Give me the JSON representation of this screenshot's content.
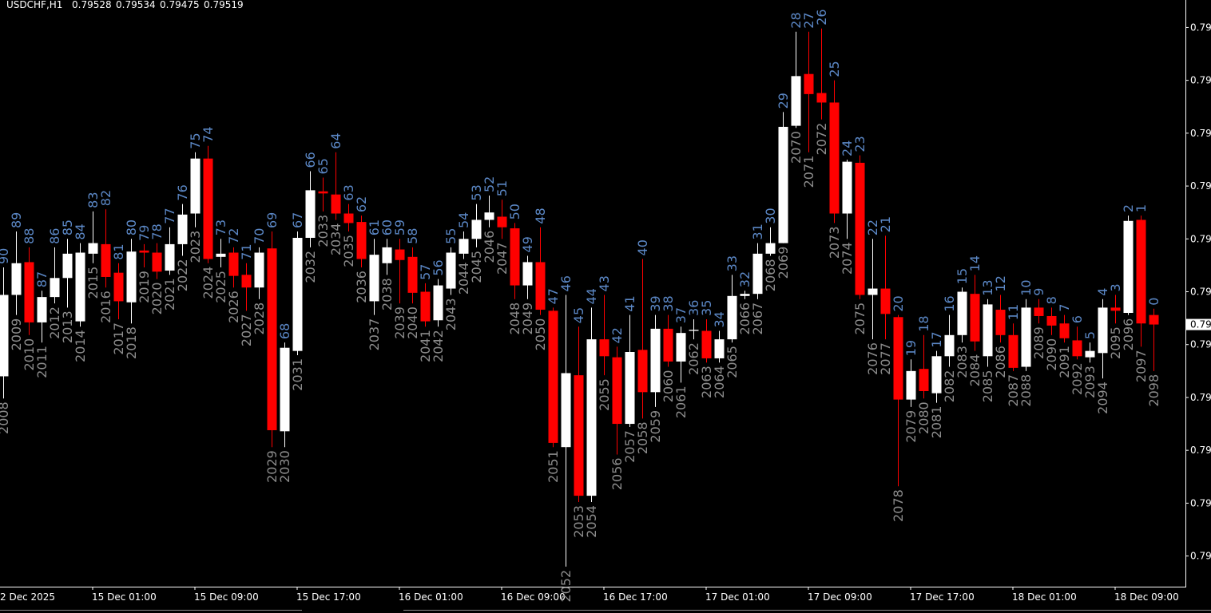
{
  "chart_data": {
    "type": "candlestick",
    "symbol": "USDCHF,H1",
    "up_color": "#ffffff",
    "down_color": "#ff0000",
    "background": "#000000",
    "count_color": "#5b87c5",
    "number_color": "#8c8c8c",
    "ylim": [
      0.79271,
      0.79826
    ],
    "yticks": [
      {
        "value": 0.798,
        "label": "0.79"
      },
      {
        "value": 0.7975,
        "label": "0.79"
      },
      {
        "value": 0.797,
        "label": "0.79"
      },
      {
        "value": 0.7965,
        "label": "0.79"
      },
      {
        "value": 0.796,
        "label": "0.79"
      },
      {
        "value": 0.7955,
        "label": "0.79"
      },
      {
        "value": 0.795,
        "label": "0.79"
      },
      {
        "value": 0.7945,
        "label": "0.79"
      },
      {
        "value": 0.794,
        "label": "0.79"
      },
      {
        "value": 0.7935,
        "label": "0.79"
      },
      {
        "value": 0.793,
        "label": "0.79"
      }
    ],
    "price_label": "0.79",
    "x_labels": [
      "2 Dec 2025",
      "15 Dec 01:00",
      "15 Dec 09:00",
      "15 Dec 17:00",
      "16 Dec 01:00",
      "16 Dec 09:00",
      "16 Dec 17:00",
      "17 Dec 01:00",
      "17 Dec 09:00",
      "17 Dec 17:00",
      "18 Dec 01:00",
      "18 Dec 09:00"
    ],
    "bar_numbers": [
      2008,
      2009,
      2010,
      2011,
      2012,
      2013,
      2014,
      2015,
      2016,
      2017,
      2018,
      2019,
      2020,
      2021,
      2022,
      2023,
      2024,
      2025,
      2026,
      2027,
      2028,
      2029,
      2030,
      2031,
      2032,
      2033,
      2034,
      2035,
      2036,
      2037,
      2038,
      2039,
      2040,
      2041,
      2042,
      2043,
      2044,
      2045,
      2046,
      2047,
      2048,
      2049,
      2050,
      2051,
      2052,
      2053,
      2054,
      2055,
      2056,
      2057,
      2058,
      2059,
      2060,
      2061,
      2062,
      2063,
      2064,
      2065,
      2066,
      2067,
      2068,
      2069,
      2070,
      2071,
      2072,
      2073,
      2074,
      2075,
      2076,
      2077,
      2078,
      2079,
      2080,
      2081,
      2082,
      2083,
      2084,
      2085,
      2086,
      2087,
      2088,
      2089,
      2090,
      2091,
      2092,
      2093,
      2094,
      2095,
      2096,
      2097,
      2098
    ],
    "countdown": [
      90,
      89,
      88,
      87,
      86,
      85,
      84,
      83,
      82,
      81,
      80,
      79,
      78,
      77,
      76,
      75,
      74,
      73,
      72,
      71,
      70,
      69,
      68,
      67,
      66,
      65,
      64,
      63,
      62,
      61,
      60,
      59,
      58,
      57,
      56,
      55,
      54,
      53,
      52,
      51,
      50,
      49,
      48,
      47,
      46,
      45,
      44,
      43,
      42,
      41,
      40,
      39,
      38,
      37,
      36,
      35,
      34,
      33,
      32,
      31,
      30,
      29,
      28,
      27,
      26,
      25,
      24,
      23,
      22,
      21,
      20,
      19,
      18,
      17,
      16,
      15,
      14,
      13,
      12,
      11,
      10,
      9,
      8,
      7,
      6,
      5,
      4,
      3,
      2,
      1,
      0
    ],
    "open": [
      0.7947,
      0.79547,
      0.79578,
      0.79521,
      0.79545,
      0.79563,
      0.79522,
      0.79586,
      0.79595,
      0.79568,
      0.7954,
      0.79589,
      0.79587,
      0.7957,
      0.79595,
      0.79624,
      0.79676,
      0.79583,
      0.79587,
      0.79566,
      0.79554,
      0.79591,
      0.79418,
      0.79494,
      0.79601,
      0.79645,
      0.79642,
      0.79624,
      0.79616,
      0.79541,
      0.79577,
      0.7959,
      0.79583,
      0.7955,
      0.79523,
      0.79553,
      0.79586,
      0.796,
      0.79618,
      0.79621,
      0.7961,
      0.79556,
      0.79578,
      0.79532,
      0.79403,
      0.79471,
      0.79357,
      0.79505,
      0.79488,
      0.79425,
      0.79495,
      0.79455,
      0.79515,
      0.79484,
      0.79513,
      0.79513,
      0.79487,
      0.79505,
      0.79546,
      0.79548,
      0.79586,
      0.79596,
      0.79707,
      0.79756,
      0.79738,
      0.79729,
      0.79624,
      0.79672,
      0.79547,
      0.79553,
      0.79526,
      0.79448,
      0.79477,
      0.79454,
      0.79489,
      0.79509,
      0.79548,
      0.79489,
      0.79533,
      0.79509,
      0.79479,
      0.79535,
      0.79527,
      0.7952,
      0.79504,
      0.79488,
      0.79492,
      0.79535,
      0.7953,
      0.79618,
      0.79528
    ],
    "high": [
      0.79573,
      0.79607,
      0.79592,
      0.79551,
      0.79592,
      0.796,
      0.79596,
      0.79626,
      0.79628,
      0.79577,
      0.796,
      0.79595,
      0.79596,
      0.79611,
      0.79633,
      0.79682,
      0.79688,
      0.796,
      0.79592,
      0.79577,
      0.79592,
      0.79607,
      0.79502,
      0.79607,
      0.79664,
      0.79658,
      0.79682,
      0.79633,
      0.79622,
      0.796,
      0.796,
      0.796,
      0.79592,
      0.79558,
      0.79562,
      0.79592,
      0.79607,
      0.79633,
      0.79641,
      0.79637,
      0.79615,
      0.79584,
      0.79611,
      0.79535,
      0.79547,
      0.79517,
      0.79535,
      0.79547,
      0.79498,
      0.79528,
      0.79581,
      0.79528,
      0.79528,
      0.79517,
      0.79524,
      0.79524,
      0.79513,
      0.79566,
      0.79551,
      0.79596,
      0.79611,
      0.7972,
      0.79796,
      0.79796,
      0.79799,
      0.7975,
      0.79675,
      0.79679,
      0.796,
      0.79603,
      0.79528,
      0.79486,
      0.79509,
      0.79494,
      0.79528,
      0.79554,
      0.79566,
      0.79543,
      0.79547,
      0.7952,
      0.79543,
      0.79543,
      0.79535,
      0.79528,
      0.79517,
      0.79502,
      0.79543,
      0.79547,
      0.79622,
      0.79622,
      0.79534
    ],
    "low": [
      0.79449,
      0.79528,
      0.79509,
      0.79502,
      0.79539,
      0.79535,
      0.79517,
      0.79577,
      0.79554,
      0.79524,
      0.7952,
      0.79573,
      0.79562,
      0.79566,
      0.79584,
      0.79611,
      0.79577,
      0.79573,
      0.79554,
      0.79532,
      0.79543,
      0.79403,
      0.79403,
      0.7949,
      0.79592,
      0.79626,
      0.79618,
      0.79607,
      0.79573,
      0.79528,
      0.79566,
      0.79539,
      0.79539,
      0.79517,
      0.79517,
      0.79547,
      0.79581,
      0.79592,
      0.79611,
      0.796,
      0.79543,
      0.79543,
      0.79528,
      0.79403,
      0.7929,
      0.79351,
      0.79351,
      0.79471,
      0.79396,
      0.79422,
      0.7943,
      0.79441,
      0.79479,
      0.79464,
      0.79505,
      0.79483,
      0.79483,
      0.79502,
      0.79543,
      0.79543,
      0.79584,
      0.79596,
      0.79705,
      0.79682,
      0.79713,
      0.79615,
      0.796,
      0.79543,
      0.79505,
      0.79505,
      0.79366,
      0.79441,
      0.79449,
      0.79445,
      0.79479,
      0.79502,
      0.79494,
      0.79479,
      0.79502,
      0.79475,
      0.79475,
      0.7952,
      0.79509,
      0.79502,
      0.79486,
      0.79483,
      0.79468,
      0.7952,
      0.79528,
      0.79498,
      0.79475
    ],
    "close": [
      0.79547,
      0.79577,
      0.79521,
      0.79545,
      0.79563,
      0.79586,
      0.79587,
      0.79596,
      0.79564,
      0.79541,
      0.79588,
      0.79587,
      0.79569,
      0.79595,
      0.79623,
      0.79676,
      0.79581,
      0.79586,
      0.79565,
      0.79554,
      0.79587,
      0.79419,
      0.79497,
      0.79601,
      0.79646,
      0.79643,
      0.79624,
      0.79615,
      0.79581,
      0.79585,
      0.79592,
      0.7958,
      0.79549,
      0.79522,
      0.79556,
      0.79587,
      0.796,
      0.79618,
      0.79625,
      0.79611,
      0.79556,
      0.79578,
      0.79533,
      0.79407,
      0.79473,
      0.79357,
      0.79505,
      0.79489,
      0.79425,
      0.79493,
      0.79455,
      0.79515,
      0.79484,
      0.79511,
      0.79514,
      0.79487,
      0.79505,
      0.79546,
      0.79548,
      0.79586,
      0.79596,
      0.79706,
      0.79754,
      0.79737,
      0.79729,
      0.79624,
      0.79673,
      0.79547,
      0.79553,
      0.79529,
      0.79448,
      0.79475,
      0.79456,
      0.79489,
      0.79509,
      0.7955,
      0.79503,
      0.79538,
      0.79509,
      0.79478,
      0.79535,
      0.79527,
      0.79518,
      0.79506,
      0.79489,
      0.79494,
      0.79535,
      0.79532,
      0.79617,
      0.7952,
      0.79519
    ]
  }
}
